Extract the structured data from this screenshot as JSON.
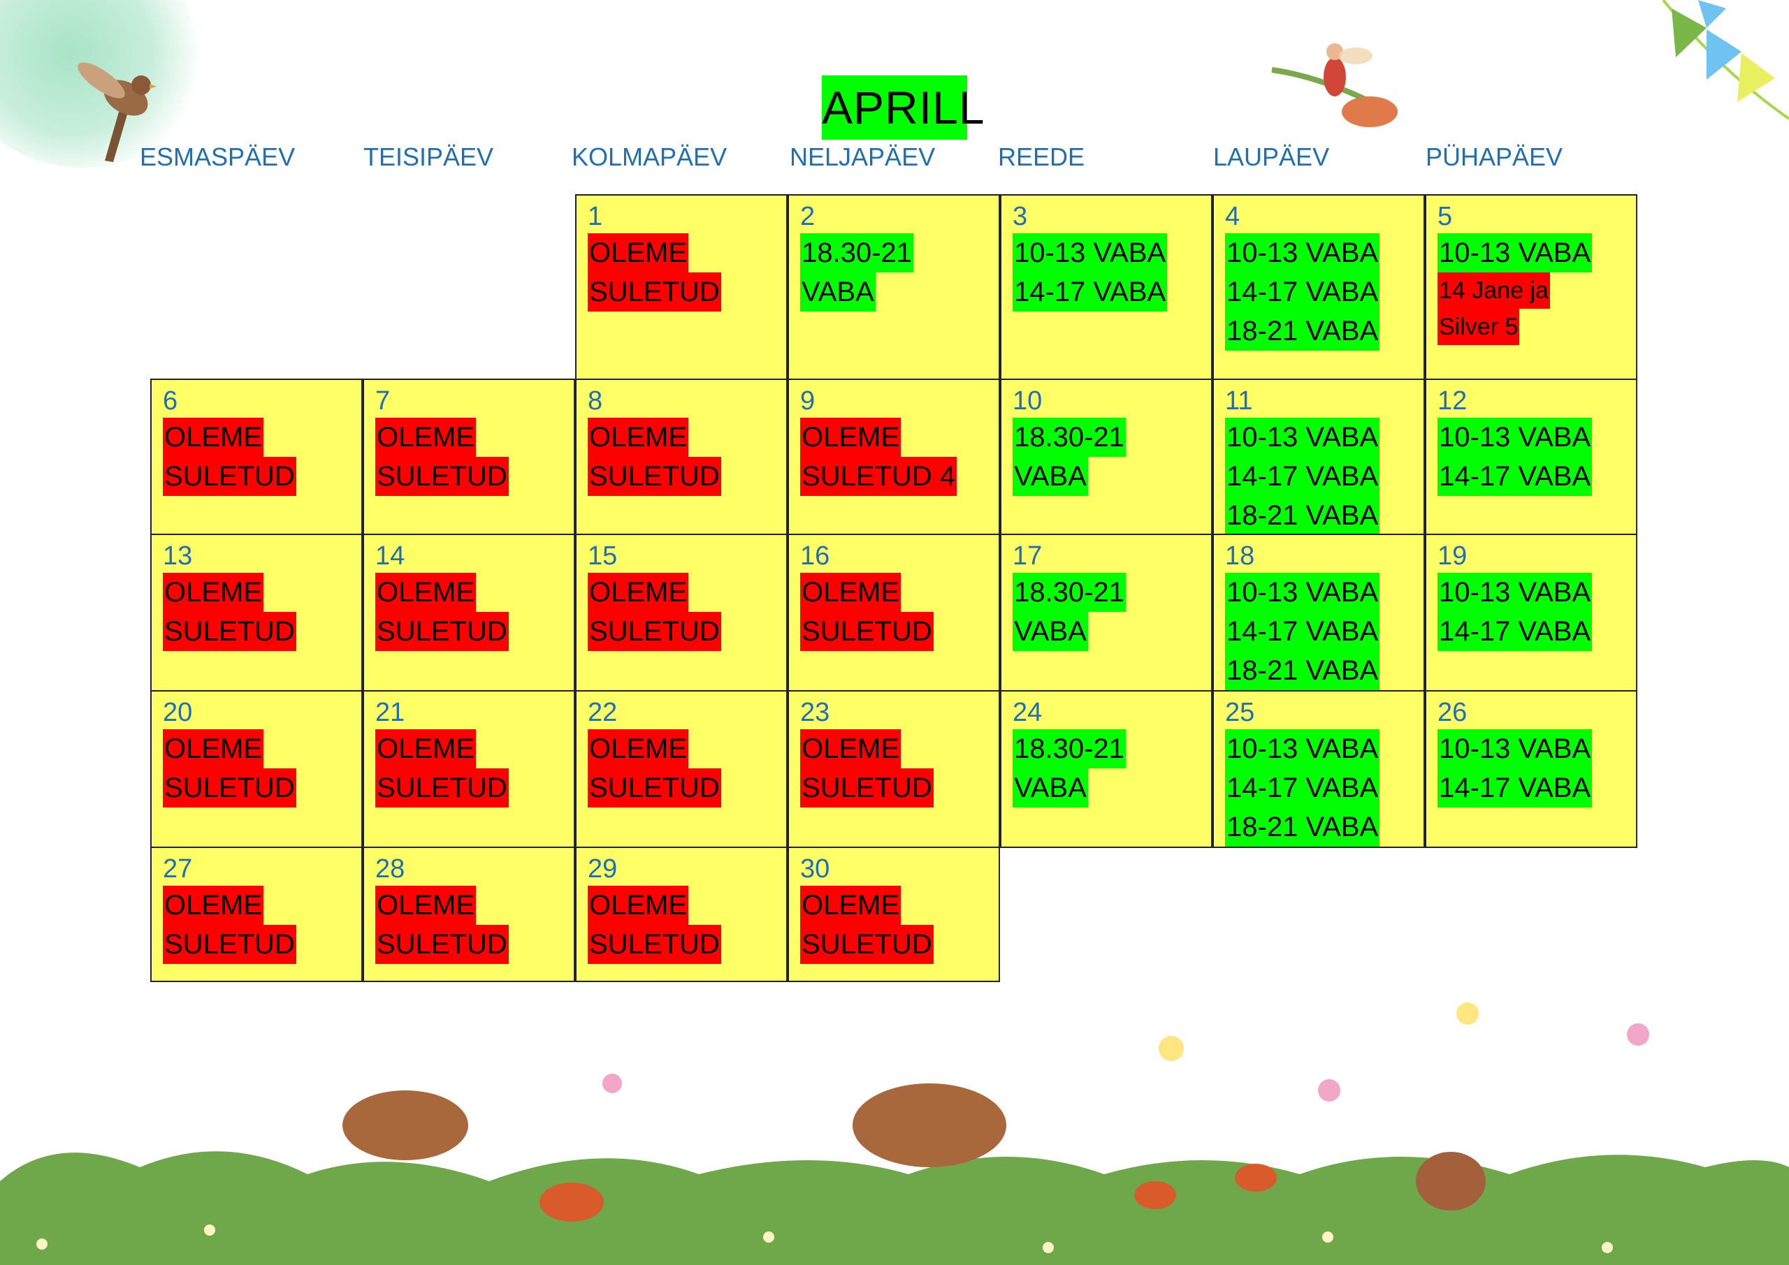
{
  "calendar": {
    "title": "APRILL",
    "weekdays": [
      "ESMASPÄEV",
      "TEISIPÄEV",
      "KOLMAPÄEV",
      "NELJAPÄEV",
      "REEDE",
      "LAUPÄEV",
      "PÜHAPÄEV"
    ],
    "colors": {
      "closed": "#ff0000",
      "free": "#00ff00",
      "cell": "#ffff66",
      "daynum": "#1f6fb2"
    },
    "days": [
      {
        "day": "1",
        "lines": [
          {
            "text": "OLEME",
            "status": "closed"
          },
          {
            "text": "SULETUD",
            "status": "closed"
          }
        ]
      },
      {
        "day": "2",
        "lines": [
          {
            "text": "18.30-21",
            "status": "free"
          },
          {
            "text": "VABA",
            "status": "free"
          }
        ]
      },
      {
        "day": "3",
        "lines": [
          {
            "text": "10-13 VABA",
            "status": "free"
          },
          {
            "text": "14-17 VABA",
            "status": "free"
          }
        ]
      },
      {
        "day": "4",
        "lines": [
          {
            "text": "10-13 VABA",
            "status": "free"
          },
          {
            "text": "14-17 VABA",
            "status": "free"
          },
          {
            "text": "18-21 VABA",
            "status": "free"
          }
        ]
      },
      {
        "day": "5",
        "lines": [
          {
            "text": "10-13 VABA",
            "status": "free"
          },
          {
            "text": "14 Jane ja",
            "status": "closed"
          },
          {
            "text": "Silver 5",
            "status": "closed"
          }
        ]
      },
      {
        "day": "6",
        "lines": [
          {
            "text": "OLEME",
            "status": "closed"
          },
          {
            "text": "SULETUD",
            "status": "closed"
          }
        ]
      },
      {
        "day": "7",
        "lines": [
          {
            "text": "OLEME",
            "status": "closed"
          },
          {
            "text": "SULETUD",
            "status": "closed"
          }
        ]
      },
      {
        "day": "8",
        "lines": [
          {
            "text": "OLEME",
            "status": "closed"
          },
          {
            "text": "SULETUD",
            "status": "closed"
          }
        ]
      },
      {
        "day": "9",
        "lines": [
          {
            "text": "OLEME",
            "status": "closed"
          },
          {
            "text": "SULETUD 4",
            "status": "closed"
          }
        ]
      },
      {
        "day": "10",
        "lines": [
          {
            "text": "18.30-21",
            "status": "free"
          },
          {
            "text": "VABA",
            "status": "free"
          }
        ]
      },
      {
        "day": "11",
        "lines": [
          {
            "text": "10-13 VABA",
            "status": "free"
          },
          {
            "text": "14-17 VABA",
            "status": "free"
          },
          {
            "text": "18-21 VABA",
            "status": "free"
          }
        ]
      },
      {
        "day": "12",
        "lines": [
          {
            "text": "10-13 VABA",
            "status": "free"
          },
          {
            "text": "14-17 VABA",
            "status": "free"
          }
        ]
      },
      {
        "day": "13",
        "lines": [
          {
            "text": "OLEME",
            "status": "closed"
          },
          {
            "text": "SULETUD",
            "status": "closed"
          }
        ]
      },
      {
        "day": "14",
        "lines": [
          {
            "text": "OLEME",
            "status": "closed"
          },
          {
            "text": "SULETUD",
            "status": "closed"
          }
        ]
      },
      {
        "day": "15",
        "lines": [
          {
            "text": "OLEME",
            "status": "closed"
          },
          {
            "text": "SULETUD",
            "status": "closed"
          }
        ]
      },
      {
        "day": "16",
        "lines": [
          {
            "text": "OLEME",
            "status": "closed"
          },
          {
            "text": "SULETUD",
            "status": "closed"
          }
        ]
      },
      {
        "day": "17",
        "lines": [
          {
            "text": "18.30-21",
            "status": "free"
          },
          {
            "text": "VABA",
            "status": "free"
          }
        ]
      },
      {
        "day": "18",
        "lines": [
          {
            "text": "10-13 VABA",
            "status": "free"
          },
          {
            "text": "14-17 VABA",
            "status": "free"
          },
          {
            "text": "18-21 VABA",
            "status": "free"
          }
        ]
      },
      {
        "day": "19",
        "lines": [
          {
            "text": "10-13 VABA",
            "status": "free"
          },
          {
            "text": "14-17 VABA",
            "status": "free"
          }
        ]
      },
      {
        "day": "20",
        "lines": [
          {
            "text": "OLEME",
            "status": "closed"
          },
          {
            "text": "SULETUD",
            "status": "closed"
          }
        ]
      },
      {
        "day": "21",
        "lines": [
          {
            "text": "OLEME",
            "status": "closed"
          },
          {
            "text": "SULETUD",
            "status": "closed"
          }
        ]
      },
      {
        "day": "22",
        "lines": [
          {
            "text": "OLEME",
            "status": "closed"
          },
          {
            "text": "SULETUD",
            "status": "closed"
          }
        ]
      },
      {
        "day": "23",
        "lines": [
          {
            "text": "OLEME",
            "status": "closed"
          },
          {
            "text": "SULETUD",
            "status": "closed"
          }
        ]
      },
      {
        "day": "24",
        "lines": [
          {
            "text": "18.30-21",
            "status": "free"
          },
          {
            "text": "VABA",
            "status": "free"
          }
        ]
      },
      {
        "day": "25",
        "lines": [
          {
            "text": "10-13 VABA",
            "status": "free"
          },
          {
            "text": "14-17 VABA",
            "status": "free"
          },
          {
            "text": "18-21 VABA",
            "status": "free"
          }
        ]
      },
      {
        "day": "26",
        "lines": [
          {
            "text": "10-13 VABA",
            "status": "free"
          },
          {
            "text": "14-17 VABA",
            "status": "free"
          }
        ]
      },
      {
        "day": "27",
        "lines": [
          {
            "text": "OLEME",
            "status": "closed"
          },
          {
            "text": "SULETUD",
            "status": "closed"
          }
        ]
      },
      {
        "day": "28",
        "lines": [
          {
            "text": "OLEME",
            "status": "closed"
          },
          {
            "text": "SULETUD",
            "status": "closed"
          }
        ]
      },
      {
        "day": "29",
        "lines": [
          {
            "text": "OLEME",
            "status": "closed"
          },
          {
            "text": "SULETUD",
            "status": "closed"
          }
        ]
      },
      {
        "day": "30",
        "lines": [
          {
            "text": "OLEME",
            "status": "closed"
          },
          {
            "text": "SULETUD",
            "status": "closed"
          }
        ]
      }
    ]
  }
}
